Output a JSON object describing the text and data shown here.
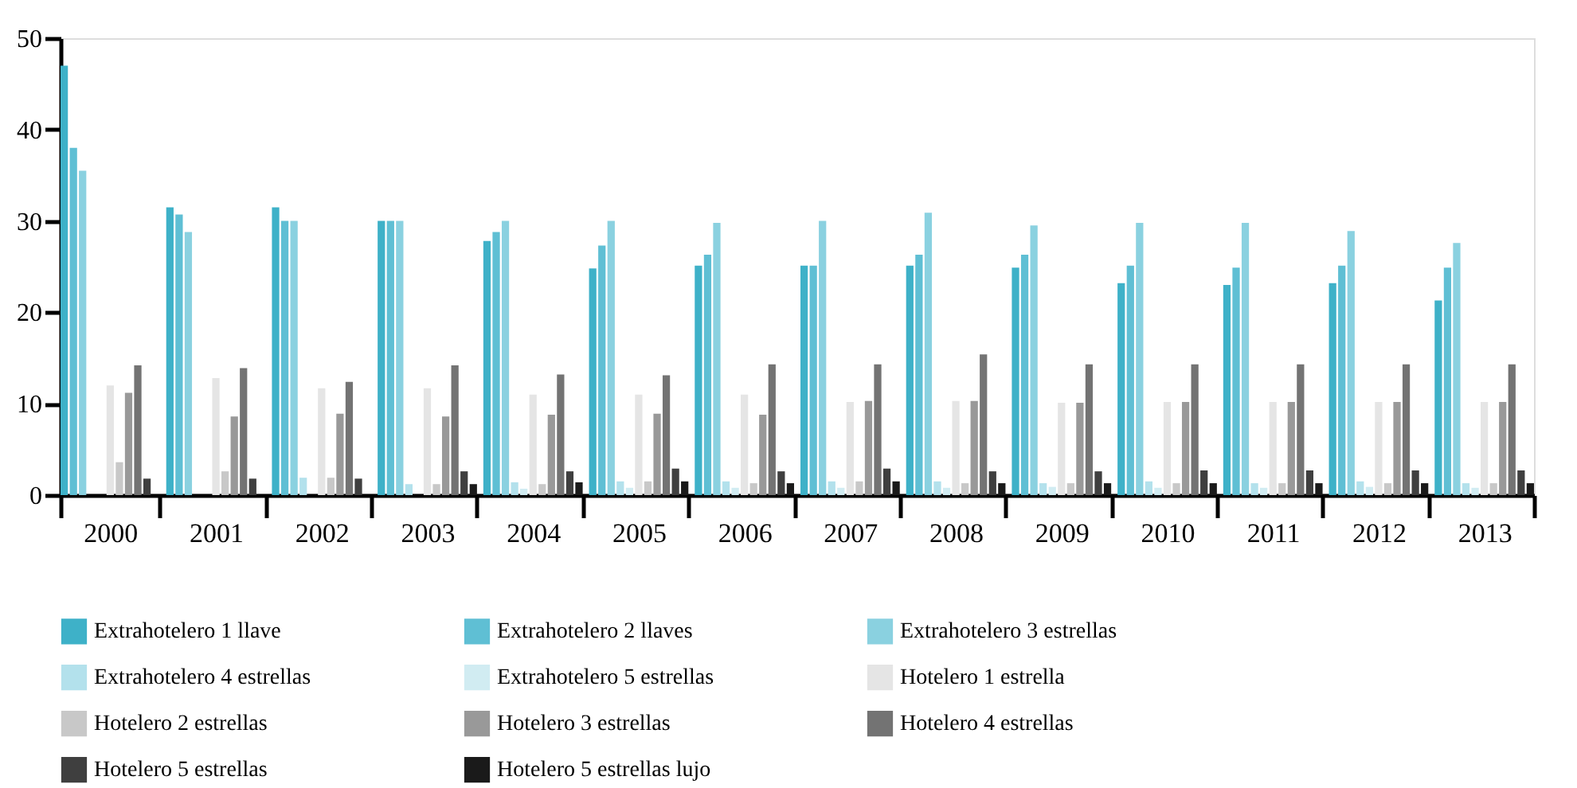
{
  "chart_data": {
    "type": "bar",
    "categories": [
      "2000",
      "2001",
      "2002",
      "2003",
      "2004",
      "2005",
      "2006",
      "2007",
      "2008",
      "2009",
      "2010",
      "2011",
      "2012",
      "2013"
    ],
    "ylim": [
      0,
      50
    ],
    "yticks": [
      0,
      10,
      20,
      30,
      40,
      50
    ],
    "grid": false,
    "legend": "bottom",
    "series": [
      {
        "name": "Extrahotelero 1 llave",
        "color": "#3eb1c8",
        "values": [
          47,
          31.5,
          31.5,
          30,
          27.8,
          24.8,
          25.1,
          25.1,
          25.1,
          24.9,
          23.2,
          23,
          23.2,
          21.3
        ]
      },
      {
        "name": "Extrahotelero 2 llaves",
        "color": "#5fbfd4",
        "values": [
          38,
          30.7,
          30,
          30,
          28.8,
          27.3,
          26.3,
          25.1,
          26.3,
          26.3,
          25.1,
          24.9,
          25.1,
          24.9
        ]
      },
      {
        "name": "Extrahotelero 3 estrellas",
        "color": "#8ad1e0",
        "values": [
          35.5,
          28.8,
          30,
          30,
          30,
          30,
          29.8,
          30,
          30.9,
          29.5,
          29.8,
          29.8,
          28.9,
          27.6
        ]
      },
      {
        "name": "Extrahotelero 4 estrellas",
        "color": "#b3e1ec",
        "values": [
          0,
          0,
          1.9,
          1.2,
          1.4,
          1.5,
          1.5,
          1.5,
          1.5,
          1.3,
          1.5,
          1.3,
          1.5,
          1.3
        ]
      },
      {
        "name": "Extrahotelero 5 estrellas",
        "color": "#d1ecf2",
        "values": [
          0,
          0,
          0,
          0,
          0.7,
          0.8,
          0.8,
          0.8,
          0.8,
          0.9,
          0.8,
          0.8,
          0.9,
          0.8
        ]
      },
      {
        "name": "Hotelero 1 estrella",
        "color": "#e5e5e5",
        "values": [
          12,
          12.8,
          11.7,
          11.7,
          11,
          11,
          11,
          10.2,
          10.3,
          10.1,
          10.2,
          10.2,
          10.2,
          10.2
        ]
      },
      {
        "name": "Hotelero 2 estrellas",
        "color": "#c8c8c8",
        "values": [
          3.6,
          2.6,
          1.9,
          1.2,
          1.2,
          1.5,
          1.3,
          1.5,
          1.3,
          1.3,
          1.3,
          1.3,
          1.3,
          1.3
        ]
      },
      {
        "name": "Hotelero 3 estrellas",
        "color": "#999999",
        "values": [
          11.2,
          8.6,
          8.9,
          8.6,
          8.8,
          8.9,
          8.8,
          10.3,
          10.3,
          10.1,
          10.2,
          10.2,
          10.2,
          10.2
        ]
      },
      {
        "name": "Hotelero 4 estrellas",
        "color": "#737373",
        "values": [
          14.2,
          13.9,
          12.4,
          14.2,
          13.2,
          13.1,
          14.3,
          14.3,
          15.4,
          14.3,
          14.3,
          14.3,
          14.3,
          14.3
        ]
      },
      {
        "name": "Hotelero 5 estrellas",
        "color": "#3f3f3f",
        "values": [
          1.8,
          1.8,
          1.8,
          2.6,
          2.6,
          2.9,
          2.6,
          2.9,
          2.6,
          2.6,
          2.7,
          2.7,
          2.7,
          2.7
        ]
      },
      {
        "name": "Hotelero 5 estrellas lujo",
        "color": "#1a1a1a",
        "values": [
          0,
          0,
          0,
          1.2,
          1.4,
          1.5,
          1.3,
          1.5,
          1.3,
          1.3,
          1.3,
          1.3,
          1.3,
          1.3
        ]
      }
    ]
  }
}
